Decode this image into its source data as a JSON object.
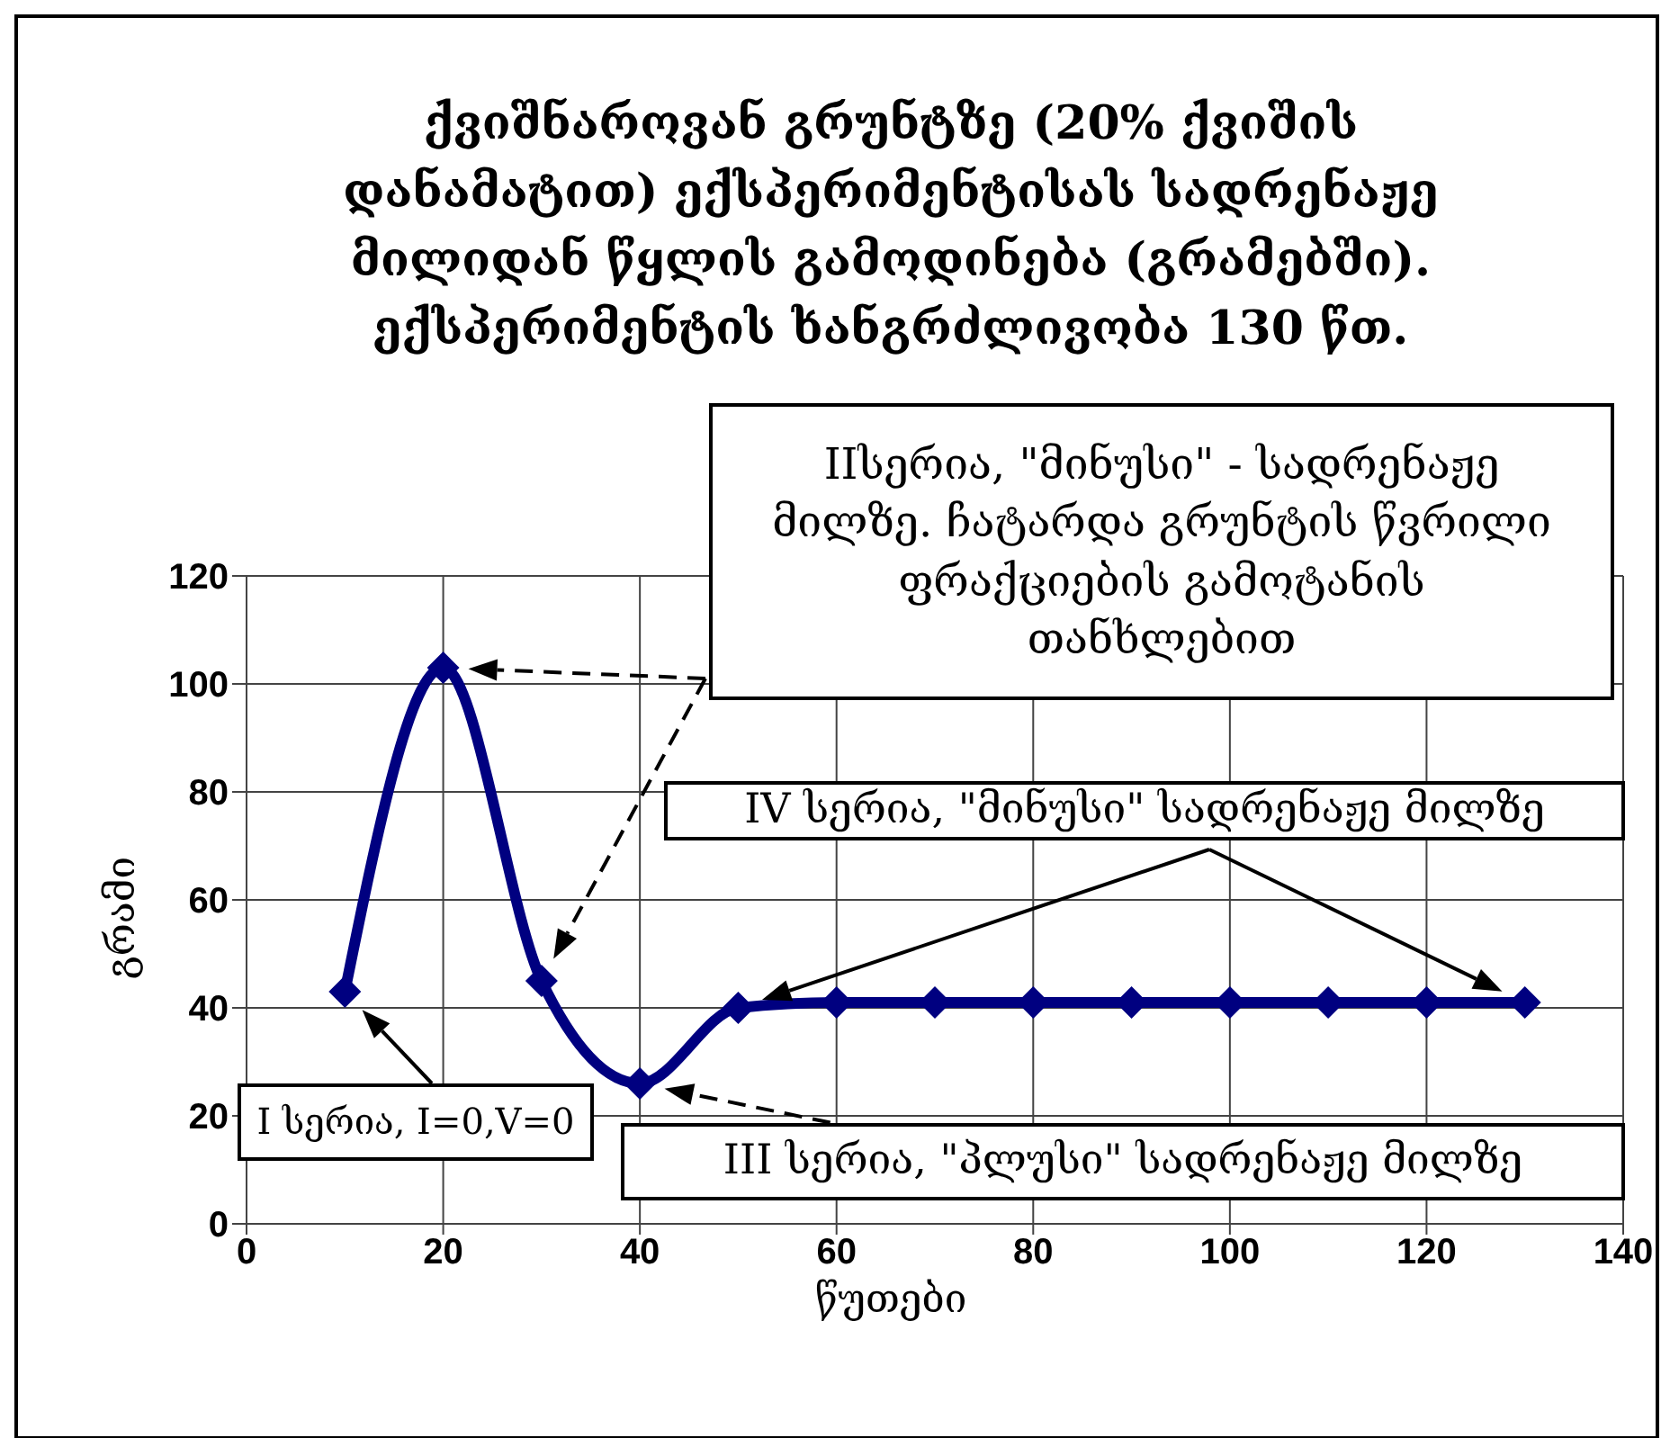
{
  "chart_data": {
    "type": "line",
    "title": "ქვიშნაროვან გრუნტზე (20% ქვიშის დანამატით) ექსპერიმენტისას სადრენაჟე მილიდან წყლის გამოდინება (გრამებში). ექსპერიმენტის ხანგრძლივობა 130 წთ.",
    "xlabel": "წუთები",
    "ylabel": "გრამი",
    "x": [
      10,
      20,
      30,
      40,
      50,
      60,
      70,
      80,
      90,
      100,
      110,
      120,
      130
    ],
    "series": [
      {
        "color": "#000080",
        "values": [
          43,
          103,
          45,
          26,
          40,
          41,
          41,
          41,
          41,
          41,
          41,
          41,
          41
        ]
      }
    ],
    "xlim": [
      0,
      140
    ],
    "xticks": [
      0,
      20,
      40,
      60,
      80,
      100,
      120,
      140
    ],
    "ylim": [
      0,
      120
    ],
    "yticks": [
      0,
      20,
      40,
      60,
      80,
      100,
      120
    ],
    "grid": true,
    "marker": "diamond",
    "line_style": "solid",
    "legend": false,
    "annotations": [
      "I სერია,  I=0,V=0",
      "IIსერია, \"მინუსი\" - სადრენაჟე მილზე. ჩატარდა გრუნტის წვრილი ფრაქციების გამოტანის თანხლებით",
      "IV  სერია, \"მინუსი\" სადრენაჟე მილზე",
      "III  სერია, \"პლუსი\" სადრენაჟე მილზე"
    ]
  }
}
